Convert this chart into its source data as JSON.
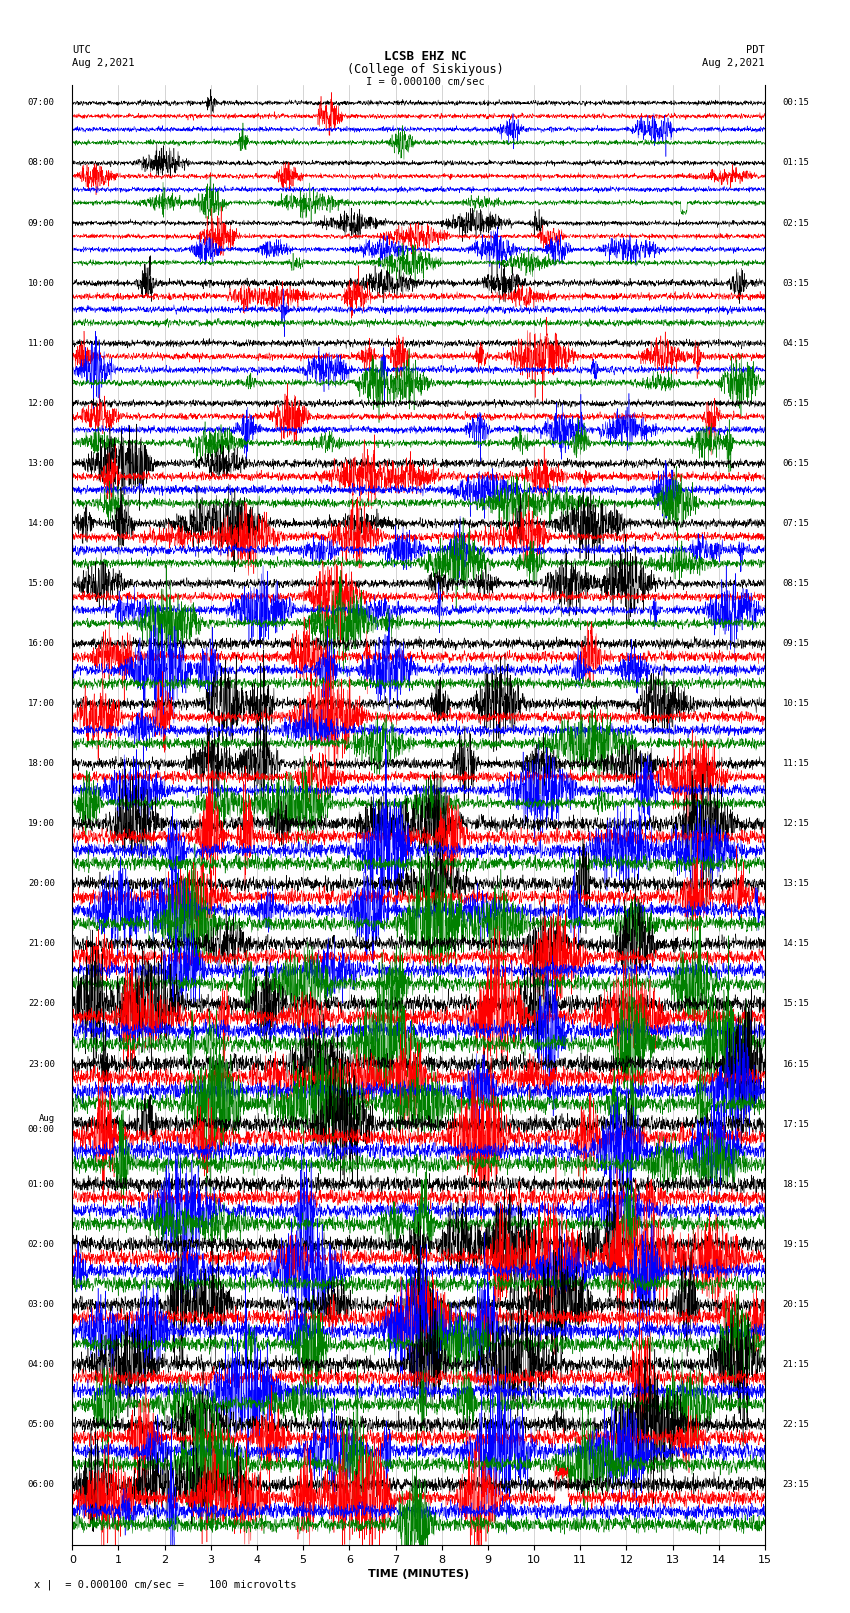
{
  "title_line1": "LCSB EHZ NC",
  "title_line2": "(College of Siskiyous)",
  "scale_label": "I = 0.000100 cm/sec",
  "xlabel": "TIME (MINUTES)",
  "footer": "= 0.000100 cm/sec =    100 microvolts",
  "utc_times_left": [
    "07:00",
    "08:00",
    "09:00",
    "10:00",
    "11:00",
    "12:00",
    "13:00",
    "14:00",
    "15:00",
    "16:00",
    "17:00",
    "18:00",
    "19:00",
    "20:00",
    "21:00",
    "22:00",
    "23:00",
    "Aug\n00:00",
    "01:00",
    "02:00",
    "03:00",
    "04:00",
    "05:00",
    "06:00"
  ],
  "pdt_times_right": [
    "00:15",
    "01:15",
    "02:15",
    "03:15",
    "04:15",
    "05:15",
    "06:15",
    "07:15",
    "08:15",
    "09:15",
    "10:15",
    "11:15",
    "12:15",
    "13:15",
    "14:15",
    "15:15",
    "16:15",
    "17:15",
    "18:15",
    "19:15",
    "20:15",
    "21:15",
    "22:15",
    "23:15"
  ],
  "colors": [
    "black",
    "red",
    "blue",
    "green"
  ],
  "n_rows": 24,
  "traces_per_row": 4,
  "time_minutes": 15,
  "background_color": "white",
  "grid_color": "#aaaaaa",
  "fig_width": 8.5,
  "fig_height": 16.13,
  "dpi": 100
}
